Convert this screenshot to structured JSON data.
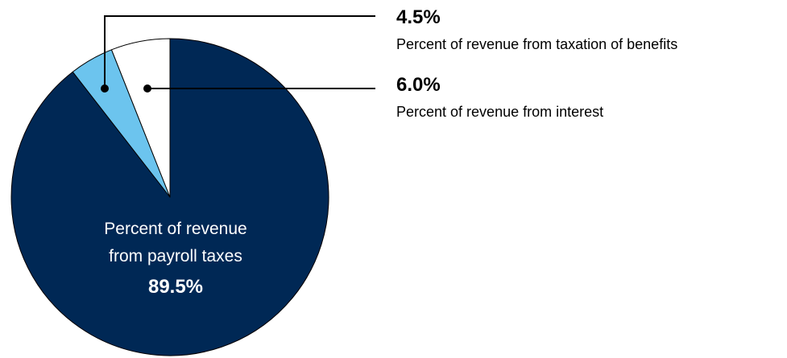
{
  "chart_data": {
    "type": "pie",
    "title": "",
    "slices": [
      {
        "label": "Percent of revenue from payroll taxes",
        "label_lines": [
          "Percent of revenue",
          "from payroll taxes"
        ],
        "value": 89.5,
        "display": "89.5%",
        "color": "#002855"
      },
      {
        "label": "Percent of revenue from taxation of benefits",
        "value": 4.5,
        "display": "4.5%",
        "color": "#6cc4ee"
      },
      {
        "label": "Percent of revenue from interest",
        "value": 6.0,
        "display": "6.0%",
        "color": "#ffffff"
      }
    ],
    "outline_color": "#000000",
    "start": "12 o'clock",
    "direction": "clockwise"
  }
}
